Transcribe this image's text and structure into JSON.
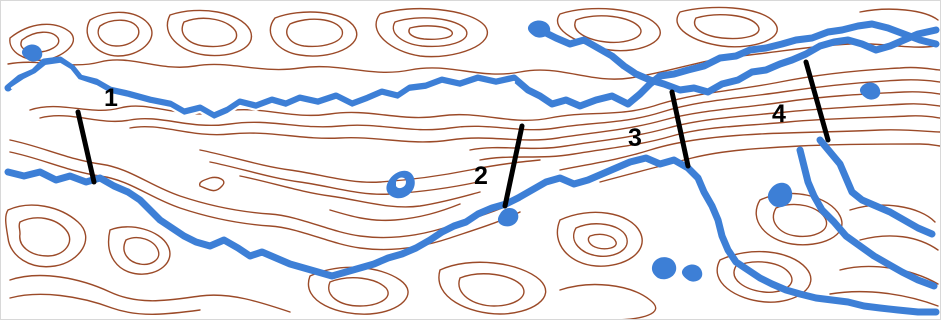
{
  "map": {
    "colors": {
      "contour": "#9b4a28",
      "water": "#3d7fd6",
      "cross_section_line": "#000000",
      "background": "#ffffff"
    },
    "cross_sections": [
      {
        "label": "1"
      },
      {
        "label": "2"
      },
      {
        "label": "3"
      },
      {
        "label": "4"
      }
    ]
  }
}
